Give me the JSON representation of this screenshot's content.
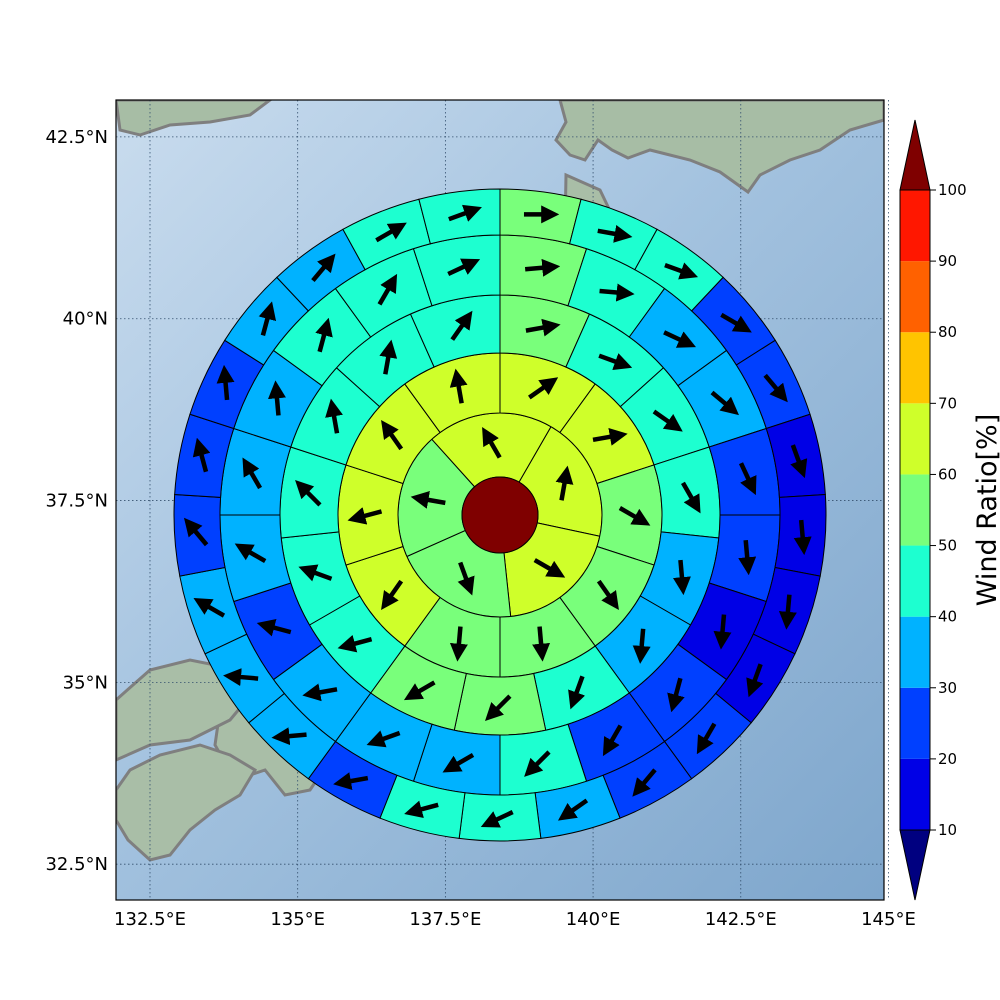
{
  "map": {
    "lat_ticks": [
      {
        "value": 42.5,
        "label": "42.5°N"
      },
      {
        "value": 40.0,
        "label": "40°N"
      },
      {
        "value": 37.5,
        "label": "37.5°N"
      },
      {
        "value": 35.0,
        "label": "35°N"
      },
      {
        "value": 32.5,
        "label": "32.5°N"
      }
    ],
    "lon_ticks": [
      {
        "value": 132.5,
        "label": "132.5°E"
      },
      {
        "value": 135.0,
        "label": "135°E"
      },
      {
        "value": 137.5,
        "label": "137.5°E"
      },
      {
        "value": 140.0,
        "label": "140°E"
      },
      {
        "value": 142.5,
        "label": "142.5°E"
      },
      {
        "value": 145.0,
        "label": "145°E"
      }
    ],
    "lon_range": [
      132.5,
      145.5
    ],
    "lat_range": [
      32.2,
      43.2
    ],
    "ocean_color": "#9cbbd9",
    "land_color": "#9fb8a6",
    "coast_color": "#808080"
  },
  "colorbar": {
    "label": "Wind Ratio[%]",
    "ticks": [
      "10",
      "20",
      "30",
      "40",
      "50",
      "60",
      "70",
      "80",
      "90",
      "100"
    ],
    "levels": [
      10,
      20,
      30,
      40,
      50,
      60,
      70,
      80,
      90,
      100
    ],
    "colors": [
      "#0000e6",
      "#0040ff",
      "#00b2ff",
      "#1dffd0",
      "#79ff7b",
      "#cfff2a",
      "#ffc400",
      "#ff6100",
      "#ff1700"
    ],
    "under_color": "#000080",
    "over_color": "#7f0000"
  },
  "chart_data": {
    "type": "heatmap",
    "description_free": true,
    "center": {
      "lon": 138.9,
      "lat": 37.6
    },
    "center_value": 100,
    "rings": [
      {
        "sectors": 5,
        "start_bearing": 30,
        "values": [
          60,
          60,
          55,
          55,
          60
        ],
        "arrows": [
          10,
          120,
          160,
          280,
          330
        ]
      },
      {
        "sectors": 10,
        "start_bearing": 0,
        "values": [
          60,
          60,
          50,
          50,
          55,
          55,
          60,
          60,
          60,
          60
        ],
        "arrows": [
          55,
          80,
          120,
          145,
          175,
          185,
          215,
          255,
          325,
          350
        ]
      },
      {
        "sectors": 15,
        "start_bearing": 0,
        "values": [
          55,
          45,
          40,
          40,
          35,
          30,
          40,
          55,
          50,
          45,
          40,
          40,
          45,
          40,
          45
        ],
        "arrows": [
          80,
          110,
          125,
          150,
          175,
          185,
          200,
          225,
          240,
          255,
          290,
          315,
          350,
          10,
          35
        ]
      },
      {
        "sectors": 20,
        "start_bearing": 0,
        "values": [
          50,
          45,
          35,
          30,
          25,
          20,
          10,
          20,
          25,
          40,
          35,
          30,
          30,
          25,
          30,
          30,
          35,
          40,
          40,
          45
        ],
        "arrows": [
          85,
          95,
          115,
          130,
          155,
          175,
          185,
          195,
          210,
          225,
          240,
          250,
          260,
          285,
          300,
          330,
          355,
          15,
          30,
          65
        ]
      },
      {
        "sectors": 25,
        "start_bearing": 0,
        "values": [
          50,
          45,
          40,
          25,
          20,
          10,
          10,
          10,
          15,
          20,
          20,
          30,
          40,
          40,
          25,
          30,
          30,
          35,
          25,
          20,
          20,
          30,
          30,
          45,
          40
        ],
        "arrows": [
          90,
          100,
          110,
          120,
          140,
          160,
          175,
          185,
          200,
          210,
          220,
          235,
          245,
          255,
          260,
          265,
          275,
          300,
          320,
          345,
          355,
          15,
          40,
          60,
          70
        ]
      }
    ]
  }
}
